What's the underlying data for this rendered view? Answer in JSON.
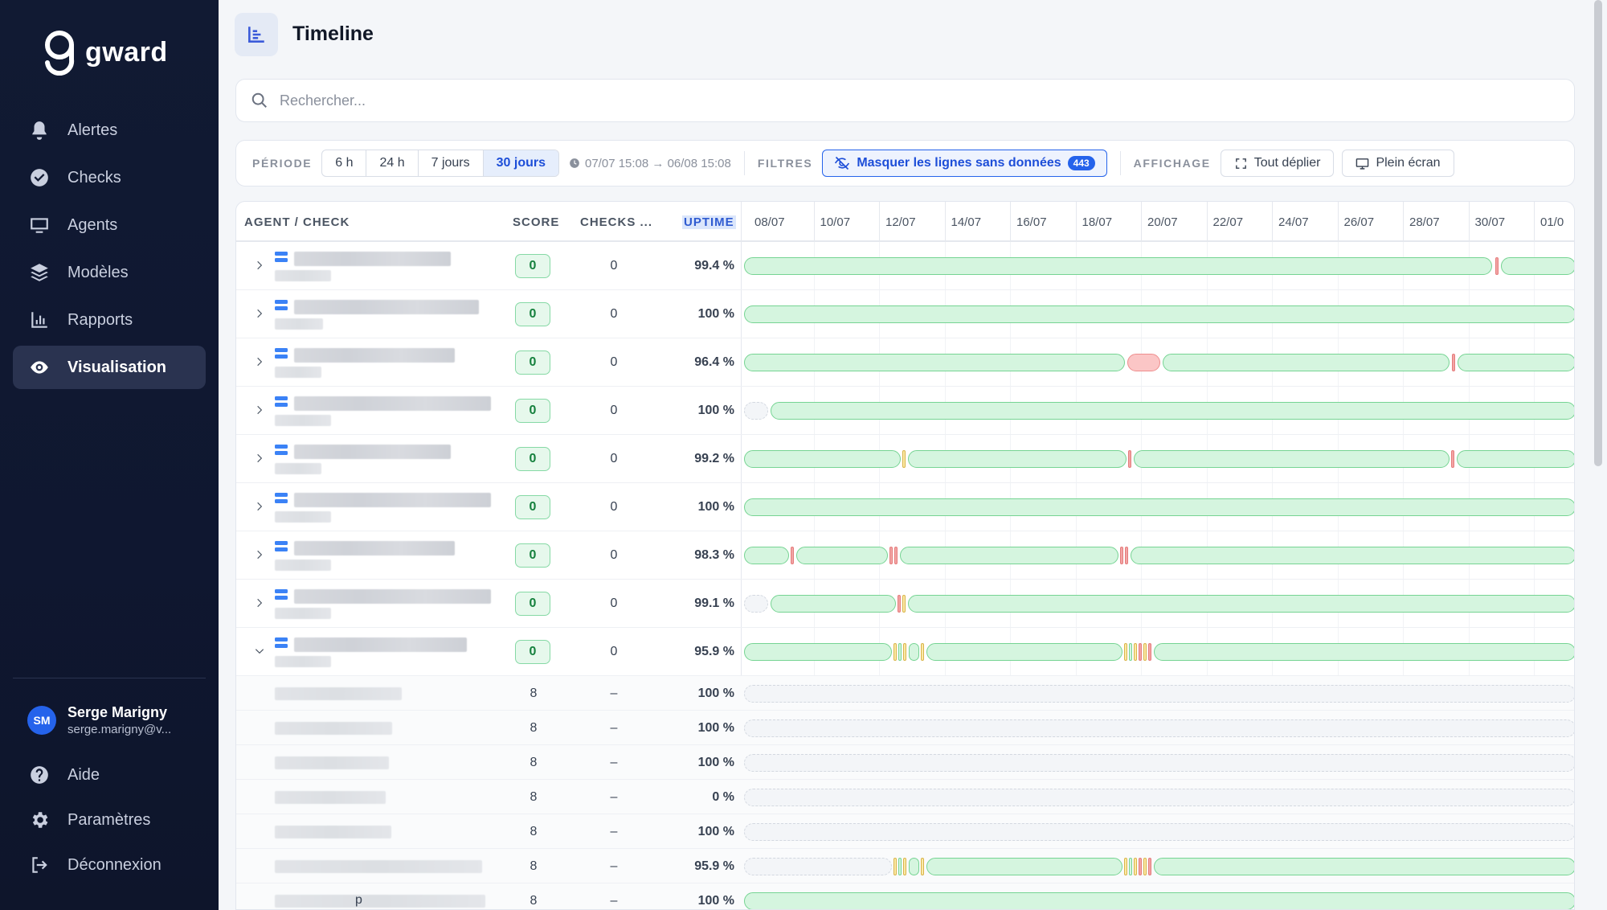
{
  "app": {
    "logo_text": "gward"
  },
  "sidebar": {
    "items": [
      {
        "label": "Alertes",
        "icon": "bell-icon"
      },
      {
        "label": "Checks",
        "icon": "check-circle-icon"
      },
      {
        "label": "Agents",
        "icon": "monitor-icon"
      },
      {
        "label": "Modèles",
        "icon": "layers-icon"
      },
      {
        "label": "Rapports",
        "icon": "chart-icon"
      },
      {
        "label": "Visualisation",
        "icon": "eye-icon",
        "active": true
      }
    ],
    "user": {
      "initials": "SM",
      "name": "Serge Marigny",
      "email": "serge.marigny@v..."
    },
    "bottom": [
      {
        "label": "Aide",
        "icon": "help-icon"
      },
      {
        "label": "Paramètres",
        "icon": "gear-icon"
      },
      {
        "label": "Déconnexion",
        "icon": "logout-icon"
      }
    ]
  },
  "header": {
    "title": "Timeline"
  },
  "search": {
    "placeholder": "Rechercher..."
  },
  "toolbar": {
    "period_label": "PÉRIODE",
    "periods": [
      "6 h",
      "24 h",
      "7 jours",
      "30 jours"
    ],
    "active_period": "30 jours",
    "range": "07/07 15:08 → 06/08 15:08",
    "filters_label": "FILTRES",
    "filter_button": "Masquer les lignes sans données",
    "filter_count": "443",
    "display_label": "AFFICHAGE",
    "expand_button": "Tout déplier",
    "fullscreen_button": "Plein écran"
  },
  "table": {
    "headers": {
      "agent": "AGENT / CHECK",
      "score": "SCORE",
      "checks": "CHECKS ...",
      "uptime": "UPTIME"
    },
    "dates": [
      "08/07",
      "10/07",
      "12/07",
      "14/07",
      "16/07",
      "18/07",
      "20/07",
      "22/07",
      "24/07",
      "26/07",
      "28/07",
      "30/07",
      "01/0"
    ],
    "rows": [
      {
        "score": "0",
        "checks": "0",
        "uptime": "99.4 %"
      },
      {
        "score": "0",
        "checks": "0",
        "uptime": "100 %"
      },
      {
        "score": "0",
        "checks": "0",
        "uptime": "96.4 %"
      },
      {
        "score": "0",
        "checks": "0",
        "uptime": "100 %"
      },
      {
        "score": "0",
        "checks": "0",
        "uptime": "99.2 %"
      },
      {
        "score": "0",
        "checks": "0",
        "uptime": "100 %"
      },
      {
        "score": "0",
        "checks": "0",
        "uptime": "98.3 %"
      },
      {
        "score": "0",
        "checks": "0",
        "uptime": "99.1 %"
      },
      {
        "score": "0",
        "checks": "0",
        "uptime": "95.9 %"
      }
    ],
    "subrows": [
      {
        "score": "8",
        "checks": "–",
        "uptime": "100 %"
      },
      {
        "score": "8",
        "checks": "–",
        "uptime": "100 %"
      },
      {
        "score": "8",
        "checks": "–",
        "uptime": "100 %"
      },
      {
        "score": "8",
        "checks": "–",
        "uptime": "0 %"
      },
      {
        "score": "8",
        "checks": "–",
        "uptime": "100 %"
      },
      {
        "score": "8",
        "checks": "–",
        "uptime": "95.9 %"
      },
      {
        "score": "8",
        "checks": "–",
        "uptime": "100 %",
        "partial_text": "p"
      }
    ]
  },
  "colors": {
    "accent": "#2563eb",
    "ok": "#76d493",
    "error": "#ee8e8e",
    "warning": "#e5c658",
    "sidebar_bg": "#111a33"
  }
}
